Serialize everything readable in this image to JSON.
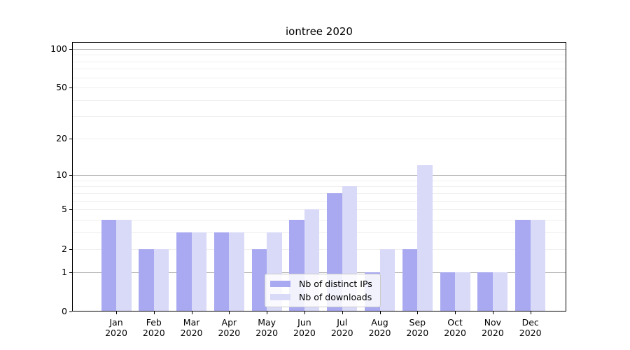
{
  "chart_data": {
    "type": "bar",
    "title": "iontree 2020",
    "categories": [
      "Jan 2020",
      "Feb 2020",
      "Mar 2020",
      "Apr 2020",
      "May 2020",
      "Jun 2020",
      "Jul 2020",
      "Aug 2020",
      "Sep 2020",
      "Oct 2020",
      "Nov 2020",
      "Dec 2020"
    ],
    "series": [
      {
        "name": "Nb of distinct IPs",
        "color": "#a9a9f1",
        "values": [
          4,
          2,
          3,
          3,
          2,
          4,
          7,
          1,
          2,
          1,
          1,
          4
        ]
      },
      {
        "name": "Nb of downloads",
        "color": "#d9d9f8",
        "values": [
          4,
          2,
          3,
          3,
          3,
          5,
          8,
          2,
          12,
          1,
          1,
          4
        ]
      }
    ],
    "xlabel": "",
    "ylabel": "",
    "yscale": "log1p",
    "ylim": [
      0,
      113
    ],
    "y_tick_values": [
      0,
      1,
      2,
      5,
      10,
      20,
      50,
      100
    ],
    "y_tick_labels": [
      "0",
      "1",
      "2",
      "5",
      "10",
      "20",
      "50",
      "100"
    ],
    "gridlines": {
      "major": [
        1,
        10,
        100
      ],
      "minor": [
        2,
        3,
        4,
        5,
        6,
        7,
        8,
        9,
        20,
        30,
        40,
        50,
        60,
        70,
        80,
        90
      ],
      "major_color": "#b0b0b0",
      "minor_color": "#efefef"
    },
    "legend_position": "lower center",
    "axis_color": "#000000",
    "text_color": "#000000",
    "background": "#ffffff"
  }
}
